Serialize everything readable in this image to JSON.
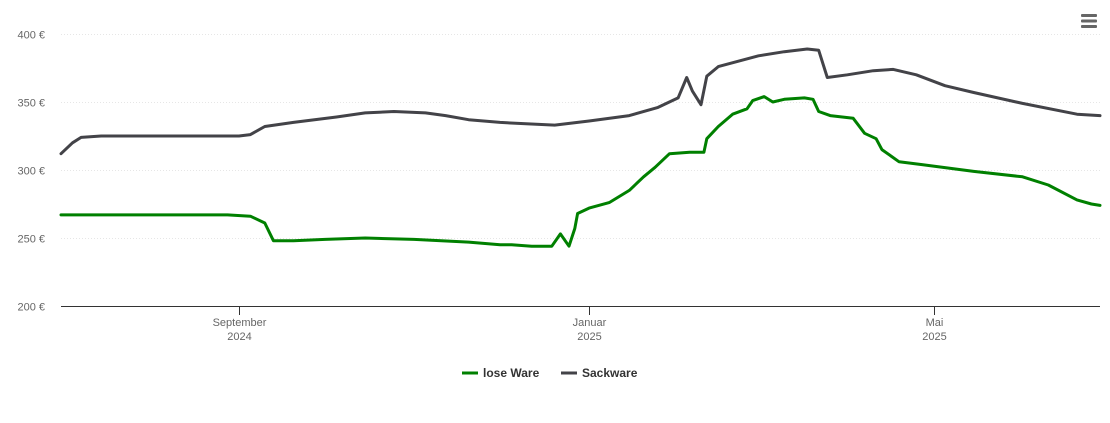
{
  "chart_data": {
    "type": "line",
    "title": "",
    "xlabel": "",
    "ylabel": "",
    "ylim": [
      200,
      400
    ],
    "y_ticks": [
      {
        "value": 400,
        "label": "400 €"
      },
      {
        "value": 350,
        "label": "350 €"
      },
      {
        "value": 300,
        "label": "300 €"
      },
      {
        "value": 250,
        "label": "250 €"
      },
      {
        "value": 200,
        "label": "200 €"
      }
    ],
    "xlim": [
      "2024-07-01",
      "2025-06-28"
    ],
    "x_ticks": [
      {
        "date": "2024-09-01",
        "line1": "September",
        "line2": "2024"
      },
      {
        "date": "2025-01-01",
        "line1": "Januar",
        "line2": "2025"
      },
      {
        "date": "2025-05-01",
        "line1": "Mai",
        "line2": "2025"
      }
    ],
    "grid": "horizontal dotted",
    "legend": "bottom-center",
    "series": [
      {
        "name": "lose Ware",
        "color": "#008000",
        "points": [
          [
            "2024-07-01",
            267
          ],
          [
            "2024-08-01",
            267
          ],
          [
            "2024-08-15",
            267
          ],
          [
            "2024-08-28",
            267
          ],
          [
            "2024-09-05",
            266
          ],
          [
            "2024-09-10",
            261
          ],
          [
            "2024-09-13",
            248
          ],
          [
            "2024-09-20",
            248
          ],
          [
            "2024-10-01",
            249
          ],
          [
            "2024-10-15",
            250
          ],
          [
            "2024-11-01",
            249
          ],
          [
            "2024-11-20",
            247
          ],
          [
            "2024-12-05",
            245
          ],
          [
            "2024-12-25",
            244
          ],
          [
            "2024-12-01",
            245
          ],
          [
            "2024-12-12",
            244
          ],
          [
            "2024-12-19",
            244
          ],
          [
            "2024-12-22",
            253
          ],
          [
            "2024-12-27",
            257
          ],
          [
            "2024-12-28",
            268
          ],
          [
            "2025-01-01",
            272
          ],
          [
            "2025-01-08",
            276
          ],
          [
            "2025-01-15",
            285
          ],
          [
            "2025-01-20",
            295
          ],
          [
            "2025-01-24",
            302
          ],
          [
            "2025-01-29",
            312
          ],
          [
            "2025-02-05",
            313
          ],
          [
            "2025-02-10",
            313
          ],
          [
            "2025-02-11",
            323
          ],
          [
            "2025-02-15",
            332
          ],
          [
            "2025-02-20",
            341
          ],
          [
            "2025-02-25",
            345
          ],
          [
            "2025-02-27",
            351
          ],
          [
            "2025-03-03",
            354
          ],
          [
            "2025-03-06",
            350
          ],
          [
            "2025-03-10",
            352
          ],
          [
            "2025-03-17",
            353
          ],
          [
            "2025-03-20",
            352
          ],
          [
            "2025-03-22",
            343
          ],
          [
            "2025-03-26",
            340
          ],
          [
            "2025-04-03",
            338
          ],
          [
            "2025-04-07",
            327
          ],
          [
            "2025-04-11",
            323
          ],
          [
            "2025-04-13",
            315
          ],
          [
            "2025-04-19",
            306
          ],
          [
            "2025-04-27",
            304
          ],
          [
            "2025-05-15",
            299
          ],
          [
            "2025-06-01",
            295
          ],
          [
            "2025-06-10",
            289
          ],
          [
            "2025-06-20",
            278
          ],
          [
            "2025-06-25",
            275
          ],
          [
            "2025-06-28",
            274
          ]
        ]
      },
      {
        "name": "Sackware",
        "color": "#434348",
        "points": [
          [
            "2024-07-01",
            312
          ],
          [
            "2024-07-05",
            320
          ],
          [
            "2024-07-08",
            324
          ],
          [
            "2024-07-15",
            325
          ],
          [
            "2024-08-15",
            325
          ],
          [
            "2024-09-01",
            325
          ],
          [
            "2024-09-05",
            326
          ],
          [
            "2024-09-10",
            332
          ],
          [
            "2024-09-20",
            335
          ],
          [
            "2024-10-05",
            339
          ],
          [
            "2024-10-15",
            342
          ],
          [
            "2024-10-25",
            343
          ],
          [
            "2024-11-05",
            342
          ],
          [
            "2024-11-12",
            340
          ],
          [
            "2024-11-20",
            337
          ],
          [
            "2024-12-01",
            335
          ],
          [
            "2024-12-10",
            334
          ],
          [
            "2024-12-20",
            333
          ],
          [
            "2025-01-01",
            336
          ],
          [
            "2025-01-15",
            340
          ],
          [
            "2025-01-25",
            346
          ],
          [
            "2025-02-01",
            353
          ],
          [
            "2025-02-04",
            368
          ],
          [
            "2025-02-06",
            358
          ],
          [
            "2025-02-09",
            348
          ],
          [
            "2025-02-11",
            369
          ],
          [
            "2025-02-15",
            376
          ],
          [
            "2025-02-22",
            380
          ],
          [
            "2025-03-01",
            384
          ],
          [
            "2025-03-10",
            387
          ],
          [
            "2025-03-18",
            389
          ],
          [
            "2025-03-22",
            388
          ],
          [
            "2025-03-25",
            368
          ],
          [
            "2025-04-01",
            370
          ],
          [
            "2025-04-10",
            373
          ],
          [
            "2025-04-17",
            374
          ],
          [
            "2025-04-25",
            370
          ],
          [
            "2025-05-05",
            362
          ],
          [
            "2025-05-15",
            357
          ],
          [
            "2025-06-01",
            349
          ],
          [
            "2025-06-20",
            341
          ],
          [
            "2025-06-28",
            340
          ]
        ]
      }
    ]
  },
  "menu": {
    "icon": "hamburger-menu-icon"
  }
}
